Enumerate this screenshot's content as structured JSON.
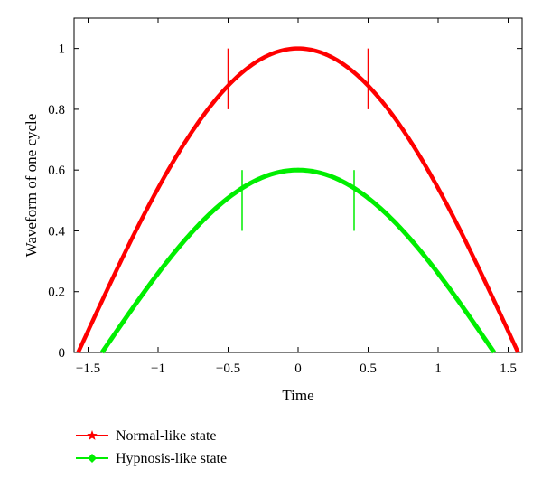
{
  "chart_data": {
    "type": "line",
    "xlabel": "Time",
    "ylabel": "Waveform of one cycle",
    "xlim": [
      -1.6,
      1.6
    ],
    "ylim": [
      0,
      1.1
    ],
    "x_ticks": [
      -1.5,
      -1,
      -0.5,
      0,
      0.5,
      1,
      1.5
    ],
    "x_tick_labels": [
      "−1.5",
      "−1",
      "−0.5",
      "0",
      "0.5",
      "1",
      "1.5"
    ],
    "y_ticks": [
      0,
      0.2,
      0.4,
      0.6,
      0.8,
      1
    ],
    "y_tick_labels": [
      "0",
      "0.2",
      "0.4",
      "0.6",
      "0.8",
      "1"
    ],
    "grid": false,
    "legend_position": "below-left",
    "series": [
      {
        "name": "Normal-like state",
        "color": "#ff0000",
        "marker": "star",
        "function": "cos",
        "amplitude": 1.0,
        "x_range": [
          -1.5708,
          1.5708
        ],
        "markers_x": [
          -0.5,
          0.5
        ],
        "marker_segment_y": [
          0.8,
          1.0
        ]
      },
      {
        "name": "Hypnosis-like state",
        "color": "#00ee00",
        "marker": "diamond",
        "function": "cos_scaled",
        "amplitude": 0.6,
        "x_range": [
          -1.4,
          1.4
        ],
        "markers_x": [
          -0.4,
          0.4
        ],
        "marker_segment_y": [
          0.4,
          0.6
        ]
      }
    ]
  }
}
